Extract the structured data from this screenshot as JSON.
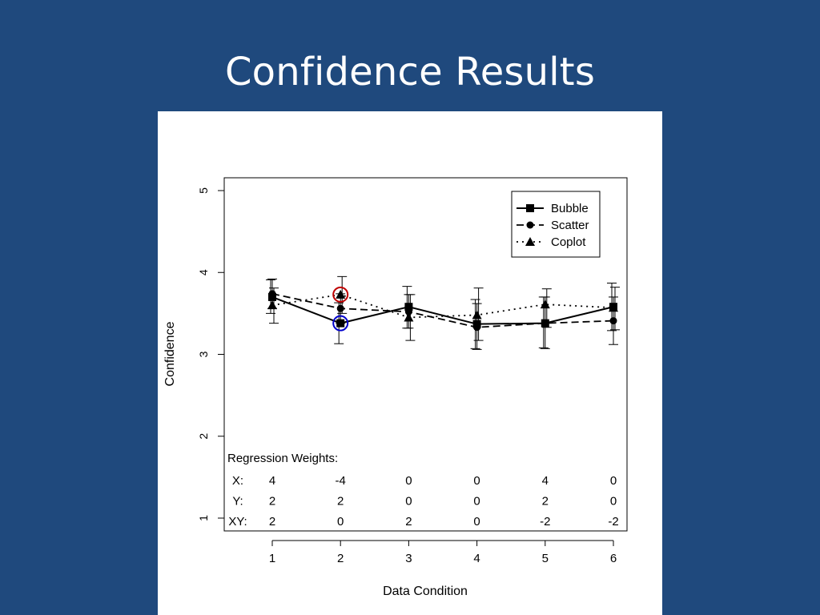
{
  "slide": {
    "title": "Confidence Results"
  },
  "chart_data": {
    "type": "line",
    "xlabel": "Data Condition",
    "ylabel": "Confidence",
    "xlim": [
      1,
      6
    ],
    "ylim": [
      1,
      5
    ],
    "x": [
      1,
      2,
      3,
      4,
      5,
      6
    ],
    "x_ticks": [
      1,
      2,
      3,
      4,
      5,
      6
    ],
    "y_ticks": [
      1,
      2,
      3,
      4,
      5
    ],
    "legend_position": "top-right",
    "series": [
      {
        "name": "Bubble",
        "marker": "square",
        "linestyle": "solid",
        "values": [
          3.7,
          3.38,
          3.58,
          3.37,
          3.38,
          3.58
        ],
        "err_low": [
          3.5,
          3.13,
          3.32,
          3.07,
          3.08,
          3.29
        ],
        "err_high": [
          3.91,
          3.63,
          3.83,
          3.67,
          3.7,
          3.87
        ]
      },
      {
        "name": "Scatter",
        "marker": "circle",
        "linestyle": "dashed",
        "values": [
          3.74,
          3.56,
          3.52,
          3.33,
          3.38,
          3.41
        ],
        "err_low": [
          3.56,
          3.38,
          3.32,
          3.06,
          3.07,
          3.12
        ],
        "err_high": [
          3.92,
          3.74,
          3.73,
          3.62,
          3.7,
          3.7
        ]
      },
      {
        "name": "Coplot",
        "marker": "triangle",
        "linestyle": "dotted",
        "values": [
          3.6,
          3.73,
          3.45,
          3.48,
          3.61,
          3.57
        ],
        "err_low": [
          3.38,
          3.5,
          3.17,
          3.17,
          3.33,
          3.3
        ],
        "err_high": [
          3.81,
          3.95,
          3.73,
          3.81,
          3.8,
          3.82
        ]
      }
    ],
    "highlights": [
      {
        "x": 2,
        "y": 3.73,
        "color": "#c00000"
      },
      {
        "x": 2,
        "y": 3.38,
        "color": "#0000cc"
      }
    ],
    "annotation_table": {
      "title": "Regression Weights:",
      "rows": [
        {
          "label": "X:",
          "values": [
            "4",
            "-4",
            "0",
            "0",
            "4",
            "0"
          ]
        },
        {
          "label": "Y:",
          "values": [
            "2",
            "2",
            "0",
            "0",
            "2",
            "0"
          ]
        },
        {
          "label": "XY:",
          "values": [
            "2",
            "0",
            "2",
            "0",
            "-2",
            "-2"
          ]
        }
      ]
    }
  }
}
